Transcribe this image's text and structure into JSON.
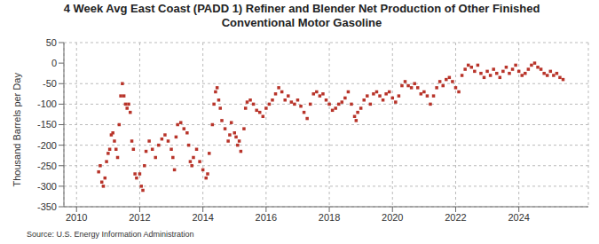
{
  "chart_data": {
    "type": "scatter",
    "title": "4 Week Avg East Coast (PADD 1) Refiner and Blender Net Production of Other Finished Conventional Motor Gasoline",
    "y_label": "Thousand Barrels per Day",
    "source": "Source: U.S. Energy Information Administration",
    "color": "#b8342a",
    "marker": "square",
    "grid": true,
    "xlim": [
      2009.6,
      2026.2
    ],
    "xticks": [
      2010,
      2012,
      2014,
      2016,
      2018,
      2020,
      2022,
      2024
    ],
    "ylim": [
      -350,
      50
    ],
    "yticks": [
      -350,
      -300,
      -250,
      -200,
      -150,
      -100,
      -50,
      0,
      50
    ],
    "x": [
      2010.7,
      2010.75,
      2010.8,
      2010.85,
      2010.9,
      2010.95,
      2011.0,
      2011.05,
      2011.1,
      2011.15,
      2011.2,
      2011.25,
      2011.3,
      2011.35,
      2011.4,
      2011.45,
      2011.5,
      2011.55,
      2011.6,
      2011.65,
      2011.7,
      2011.75,
      2011.8,
      2011.85,
      2011.9,
      2012.0,
      2012.05,
      2012.1,
      2012.15,
      2012.2,
      2012.3,
      2012.4,
      2012.5,
      2012.6,
      2012.7,
      2012.8,
      2012.9,
      2013.0,
      2013.05,
      2013.1,
      2013.15,
      2013.2,
      2013.3,
      2013.4,
      2013.5,
      2013.55,
      2013.6,
      2013.65,
      2013.7,
      2013.8,
      2013.9,
      2014.0,
      2014.1,
      2014.15,
      2014.2,
      2014.3,
      2014.35,
      2014.4,
      2014.45,
      2014.5,
      2014.55,
      2014.6,
      2014.7,
      2014.8,
      2014.85,
      2014.9,
      2015.0,
      2015.05,
      2015.1,
      2015.15,
      2015.2,
      2015.3,
      2015.35,
      2015.4,
      2015.5,
      2015.6,
      2015.7,
      2015.8,
      2015.9,
      2016.0,
      2016.1,
      2016.2,
      2016.3,
      2016.4,
      2016.5,
      2016.6,
      2016.7,
      2016.8,
      2016.9,
      2017.0,
      2017.1,
      2017.2,
      2017.3,
      2017.4,
      2017.5,
      2017.6,
      2017.7,
      2017.8,
      2017.9,
      2018.0,
      2018.1,
      2018.2,
      2018.3,
      2018.4,
      2018.5,
      2018.6,
      2018.7,
      2018.8,
      2018.85,
      2018.9,
      2019.0,
      2019.1,
      2019.2,
      2019.3,
      2019.4,
      2019.5,
      2019.6,
      2019.7,
      2019.8,
      2019.9,
      2020.0,
      2020.1,
      2020.2,
      2020.3,
      2020.4,
      2020.5,
      2020.6,
      2020.7,
      2020.8,
      2020.9,
      2021.0,
      2021.1,
      2021.2,
      2021.3,
      2021.4,
      2021.5,
      2021.6,
      2021.7,
      2021.8,
      2021.9,
      2022.0,
      2022.1,
      2022.2,
      2022.3,
      2022.4,
      2022.5,
      2022.6,
      2022.7,
      2022.8,
      2022.9,
      2023.0,
      2023.1,
      2023.2,
      2023.3,
      2023.4,
      2023.5,
      2023.6,
      2023.7,
      2023.8,
      2023.9,
      2024.0,
      2024.1,
      2024.2,
      2024.3,
      2024.4,
      2024.5,
      2024.6,
      2024.7,
      2024.8,
      2024.9,
      2025.0,
      2025.1,
      2025.2,
      2025.3,
      2025.4
    ],
    "values": [
      -265,
      -250,
      -290,
      -300,
      -280,
      -240,
      -220,
      -210,
      -175,
      -170,
      -190,
      -210,
      -230,
      -150,
      -80,
      -50,
      -80,
      -100,
      -110,
      -100,
      -120,
      -190,
      -210,
      -270,
      -280,
      -270,
      -300,
      -310,
      -250,
      -215,
      -190,
      -210,
      -230,
      -200,
      -185,
      -175,
      -190,
      -210,
      -230,
      -260,
      -180,
      -150,
      -145,
      -160,
      -170,
      -200,
      -240,
      -250,
      -230,
      -210,
      -240,
      -260,
      -280,
      -270,
      -220,
      -150,
      -100,
      -70,
      -60,
      -90,
      -110,
      -140,
      -160,
      -190,
      -175,
      -145,
      -170,
      -180,
      -200,
      -190,
      -215,
      -160,
      -110,
      -95,
      -90,
      -100,
      -115,
      -120,
      -130,
      -110,
      -100,
      -90,
      -75,
      -60,
      -70,
      -90,
      -80,
      -95,
      -100,
      -90,
      -105,
      -120,
      -135,
      -100,
      -75,
      -70,
      -80,
      -75,
      -90,
      -100,
      -115,
      -110,
      -100,
      -95,
      -85,
      -70,
      -100,
      -130,
      -140,
      -120,
      -110,
      -90,
      -80,
      -100,
      -75,
      -70,
      -80,
      -90,
      -75,
      -70,
      -85,
      -95,
      -80,
      -55,
      -45,
      -55,
      -60,
      -50,
      -60,
      -75,
      -70,
      -80,
      -100,
      -80,
      -60,
      -45,
      -55,
      -40,
      -35,
      -45,
      -60,
      -70,
      -30,
      -15,
      -5,
      -10,
      -20,
      -5,
      -25,
      -35,
      -20,
      -30,
      -15,
      -25,
      -35,
      -20,
      -10,
      -25,
      -15,
      -5,
      -20,
      -30,
      -25,
      -15,
      -5,
      0,
      -10,
      -15,
      -25,
      -30,
      -20,
      -30,
      -25,
      -35,
      -40
    ]
  }
}
